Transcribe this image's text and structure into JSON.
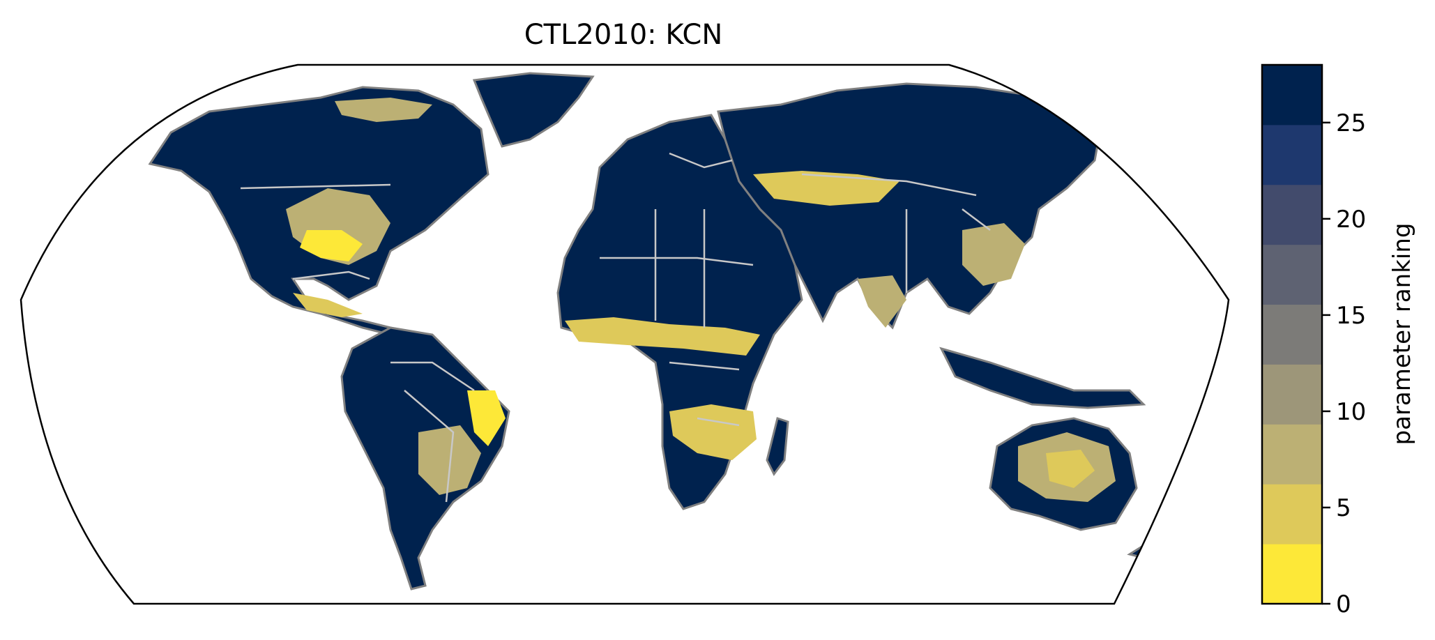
{
  "title": "CTL2010: KCN",
  "colorbar": {
    "label": "parameter ranking",
    "range": [
      0,
      28
    ],
    "ticks": [
      0,
      5,
      10,
      15,
      20,
      25
    ],
    "tick_labels": [
      "0",
      "5",
      "10",
      "15",
      "20",
      "25"
    ],
    "bin_colors": [
      "#fde838",
      "#dec95a",
      "#bcb074",
      "#9d9679",
      "#7c7b78",
      "#5e6272",
      "#424b6c",
      "#1e386e",
      "#00224e"
    ]
  },
  "map": {
    "projection": "Robinson",
    "ocean_color": "#ffffff",
    "coastline_color": "#808080",
    "border_color": "#c8c8c8",
    "dominant_value": 27,
    "high_value_color": "#00224e",
    "low_value_color": "#fde838"
  }
}
